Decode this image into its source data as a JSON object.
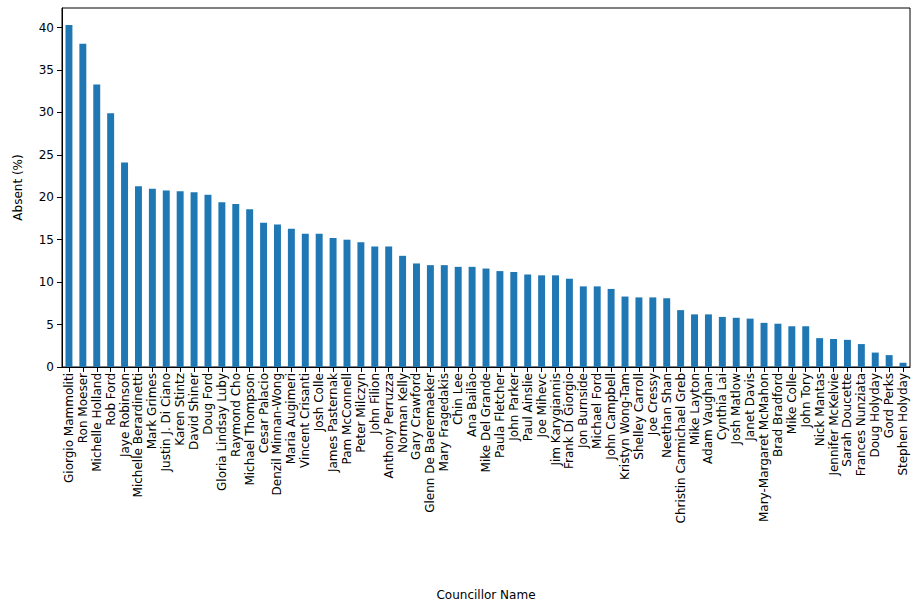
{
  "chart_data": {
    "type": "bar",
    "xlabel": "Councillor Name",
    "ylabel": "Absent (%)",
    "categories": [
      "Giorgio Mammoliti",
      "Ron Moeser",
      "Michelle Holland",
      "Rob Ford",
      "Jaye Robinson",
      "Michelle Berardinetti",
      "Mark Grimes",
      "Justin J. Di Ciano",
      "Karen Stintz",
      "David Shiner",
      "Doug Ford",
      "Gloria Lindsay Luby",
      "Raymond Cho",
      "Michael Thompson",
      "Cesar Palacio",
      "Denzil Minnan-Wong",
      "Maria Augimeri",
      "Vincent Crisanti",
      "Josh Colle",
      "James Pasternak",
      "Pam McConnell",
      "Peter Milczyn",
      "John Filion",
      "Anthony Perruzza",
      "Norman Kelly",
      "Gary Crawford",
      "Glenn De Baeremaeker",
      "Mary Fragedakis",
      "Chin Lee",
      "Ana Bailão",
      "Mike Del Grande",
      "Paula Fletcher",
      "John Parker",
      "Paul Ainslie",
      "Joe Mihevc",
      "Jim Karygiannis",
      "Frank Di Giorgio",
      "Jon Burnside",
      "Michael Ford",
      "John Campbell",
      "Kristyn Wong-Tam",
      "Shelley Carroll",
      "Joe Cressy",
      "Neethan Shan",
      "Christin Carmichael Greb",
      "Mike Layton",
      "Adam Vaughan",
      "Cynthia Lai",
      "Josh Matlow",
      "Janet Davis",
      "Mary-Margaret McMahon",
      "Brad Bradford",
      "Mike Colle",
      "John Tory",
      "Nick Mantas",
      "Jennifer McKelvie",
      "Sarah Doucette",
      "Frances Nunziata",
      "Doug Holyday",
      "Gord Perks",
      "Stephen Holyday"
    ],
    "values": [
      40.3,
      38.1,
      33.3,
      29.9,
      24.1,
      21.3,
      21.0,
      20.8,
      20.7,
      20.6,
      20.3,
      19.4,
      19.2,
      18.6,
      17.0,
      16.8,
      16.3,
      15.7,
      15.7,
      15.2,
      15.0,
      14.7,
      14.2,
      14.2,
      13.1,
      12.2,
      12.0,
      12.0,
      11.8,
      11.8,
      11.6,
      11.3,
      11.2,
      10.9,
      10.8,
      10.8,
      10.4,
      9.5,
      9.5,
      9.2,
      8.3,
      8.2,
      8.2,
      8.1,
      6.7,
      6.2,
      6.2,
      5.9,
      5.8,
      5.7,
      5.2,
      5.1,
      4.8,
      4.8,
      3.4,
      3.3,
      3.2,
      2.7,
      1.7,
      1.4,
      0.5
    ],
    "color": "#1f77b4",
    "ylim": [
      0,
      42.3
    ],
    "yticks": [
      0,
      5,
      10,
      15,
      20,
      25,
      30,
      35,
      40
    ],
    "grid": false
  }
}
